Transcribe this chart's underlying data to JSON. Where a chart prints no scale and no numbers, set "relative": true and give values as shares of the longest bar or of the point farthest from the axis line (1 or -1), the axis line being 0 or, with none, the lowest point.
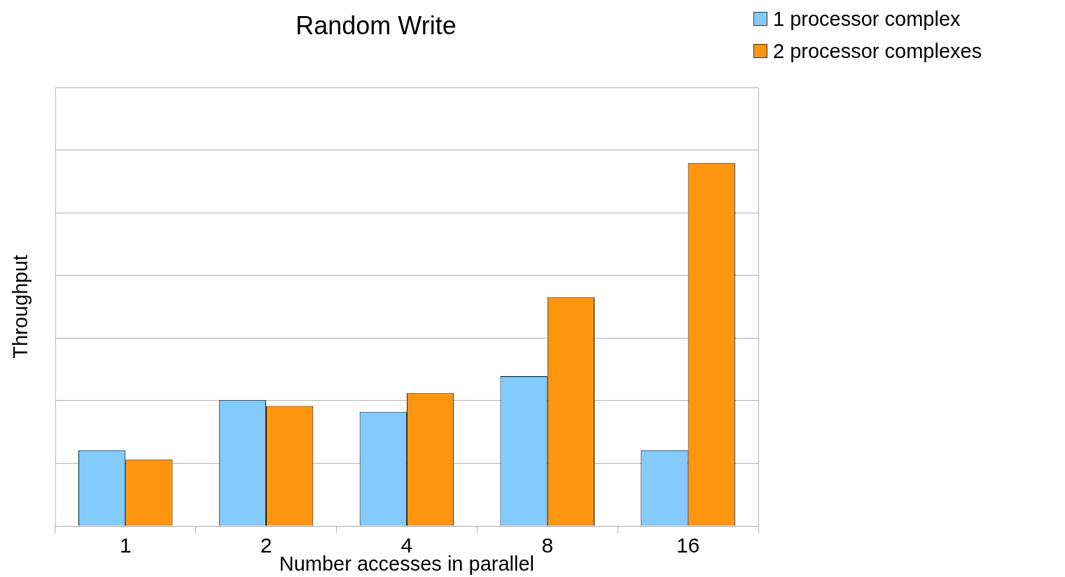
{
  "chart_data": {
    "type": "bar",
    "title": "Random Write",
    "xlabel": "Number accesses in parallel",
    "ylabel": "Throughput",
    "relative": true,
    "grid": "y",
    "legend": "top right",
    "categories": [
      "1",
      "2",
      "4",
      "8",
      "16"
    ],
    "series": [
      {
        "name": "1 processor complex",
        "color": "#83caff",
        "values": [
          0.209,
          0.347,
          0.314,
          0.413,
          0.209
        ]
      },
      {
        "name": "2 processor complexes",
        "color": "#ff950e",
        "values": [
          0.183,
          0.331,
          0.366,
          0.63,
          1
        ]
      }
    ]
  }
}
